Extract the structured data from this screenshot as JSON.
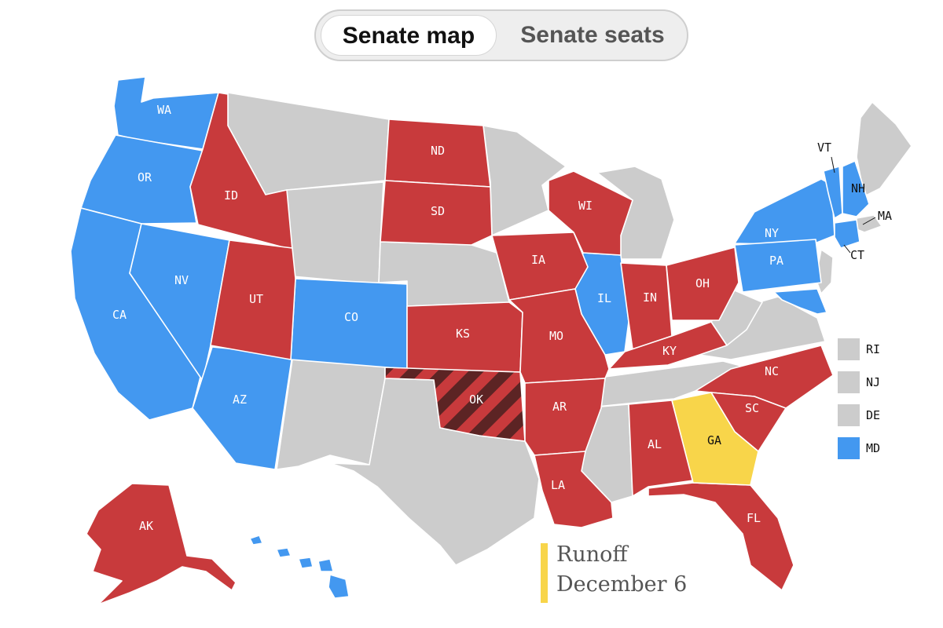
{
  "tabs": [
    {
      "label": "Senate map",
      "active": true
    },
    {
      "label": "Senate seats",
      "active": false
    }
  ],
  "colors": {
    "dem": "#4398f0",
    "rep": "#c83a3c",
    "dark_rep": "#5c2424",
    "runoff": "#f8d54a",
    "none": "#cccccc"
  },
  "states": {
    "WA": {
      "label": "WA",
      "status": "dem"
    },
    "OR": {
      "label": "OR",
      "status": "dem"
    },
    "CA": {
      "label": "CA",
      "status": "dem"
    },
    "NV": {
      "label": "NV",
      "status": "dem"
    },
    "AZ": {
      "label": "AZ",
      "status": "dem"
    },
    "CO": {
      "label": "CO",
      "status": "dem"
    },
    "IL": {
      "label": "IL",
      "status": "dem"
    },
    "NY": {
      "label": "NY",
      "status": "dem"
    },
    "PA": {
      "label": "PA",
      "status": "dem"
    },
    "VT": {
      "label": "VT",
      "status": "dem"
    },
    "NH": {
      "label": "NH",
      "status": "dem"
    },
    "CT": {
      "label": "CT",
      "status": "dem"
    },
    "MD": {
      "label": "MD",
      "status": "dem"
    },
    "HI": {
      "label": "",
      "status": "dem"
    },
    "ID": {
      "label": "ID",
      "status": "rep"
    },
    "UT": {
      "label": "UT",
      "status": "rep"
    },
    "ND": {
      "label": "ND",
      "status": "rep"
    },
    "SD": {
      "label": "SD",
      "status": "rep"
    },
    "KS": {
      "label": "KS",
      "status": "rep"
    },
    "OK": {
      "label": "OK",
      "status": "rep-special"
    },
    "IA": {
      "label": "IA",
      "status": "rep"
    },
    "MO": {
      "label": "MO",
      "status": "rep"
    },
    "AR": {
      "label": "AR",
      "status": "rep"
    },
    "LA": {
      "label": "LA",
      "status": "rep"
    },
    "WI": {
      "label": "WI",
      "status": "rep"
    },
    "IN": {
      "label": "IN",
      "status": "rep"
    },
    "OH": {
      "label": "OH",
      "status": "rep"
    },
    "KY": {
      "label": "KY",
      "status": "rep"
    },
    "AL": {
      "label": "AL",
      "status": "rep"
    },
    "NC": {
      "label": "NC",
      "status": "rep"
    },
    "SC": {
      "label": "SC",
      "status": "rep"
    },
    "FL": {
      "label": "FL",
      "status": "rep"
    },
    "AK": {
      "label": "AK",
      "status": "rep"
    },
    "GA": {
      "label": "GA",
      "status": "runoff"
    },
    "MA": {
      "label": "MA",
      "status": "none"
    }
  },
  "legend": [
    {
      "label": "RI",
      "status": "none"
    },
    {
      "label": "NJ",
      "status": "none"
    },
    {
      "label": "DE",
      "status": "none"
    },
    {
      "label": "MD",
      "status": "dem"
    }
  ],
  "runoff_note": {
    "line1": "Runoff",
    "line2": "December 6"
  }
}
